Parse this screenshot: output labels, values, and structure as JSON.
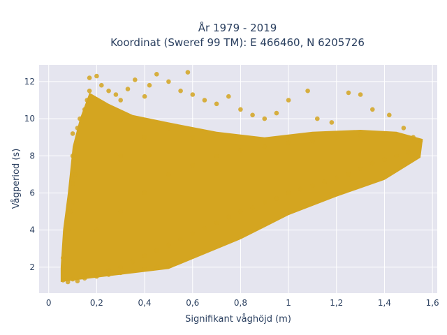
{
  "chart_data": {
    "type": "scatter",
    "title_line1": "År 1979 - 2019",
    "title_line2": "Koordinat (Sweref 99 TM): E 466460, N 6205726",
    "xlabel": "Signifikant våghöjd (m)",
    "ylabel": "Vågperiod (s)",
    "xlim": [
      -0.04,
      1.62
    ],
    "ylim": [
      0.6,
      12.9
    ],
    "x_ticks": [
      {
        "value": 0,
        "label": "0"
      },
      {
        "value": 0.2,
        "label": "0,2"
      },
      {
        "value": 0.4,
        "label": "0,4"
      },
      {
        "value": 0.6,
        "label": "0,6"
      },
      {
        "value": 0.8,
        "label": "0,8"
      },
      {
        "value": 1.0,
        "label": "1"
      },
      {
        "value": 1.2,
        "label": "1,2"
      },
      {
        "value": 1.4,
        "label": "1,4"
      },
      {
        "value": 1.6,
        "label": "1,6"
      }
    ],
    "y_ticks": [
      {
        "value": 2,
        "label": "2"
      },
      {
        "value": 4,
        "label": "4"
      },
      {
        "value": 6,
        "label": "6"
      },
      {
        "value": 8,
        "label": "8"
      },
      {
        "value": 10,
        "label": "10"
      },
      {
        "value": 12,
        "label": "12"
      }
    ],
    "grid": true,
    "marker_color": "#d4a520",
    "plot_bg": "#e5e5ef",
    "points": [
      [
        0.06,
        1.3
      ],
      [
        0.08,
        1.2
      ],
      [
        0.1,
        1.35
      ],
      [
        0.12,
        1.25
      ],
      [
        0.15,
        1.4
      ],
      [
        0.2,
        1.5
      ],
      [
        0.25,
        1.6
      ],
      [
        0.3,
        1.7
      ],
      [
        0.35,
        1.8
      ],
      [
        0.4,
        1.9
      ],
      [
        0.45,
        2.0
      ],
      [
        0.5,
        2.05
      ],
      [
        0.06,
        2.5
      ],
      [
        0.07,
        3.5
      ],
      [
        0.08,
        4.0
      ],
      [
        0.09,
        5.0
      ],
      [
        0.1,
        5.5
      ],
      [
        0.1,
        6.5
      ],
      [
        0.11,
        7.0
      ],
      [
        0.1,
        8.0
      ],
      [
        0.12,
        8.5
      ],
      [
        0.1,
        9.2
      ],
      [
        0.12,
        9.5
      ],
      [
        0.13,
        10.0
      ],
      [
        0.15,
        10.5
      ],
      [
        0.16,
        11.0
      ],
      [
        0.17,
        11.5
      ],
      [
        0.17,
        12.2
      ],
      [
        0.2,
        12.3
      ],
      [
        0.22,
        11.8
      ],
      [
        0.25,
        11.5
      ],
      [
        0.28,
        11.3
      ],
      [
        0.3,
        11.0
      ],
      [
        0.33,
        11.6
      ],
      [
        0.36,
        12.1
      ],
      [
        0.4,
        11.2
      ],
      [
        0.42,
        11.8
      ],
      [
        0.45,
        12.4
      ],
      [
        0.5,
        12.0
      ],
      [
        0.55,
        11.5
      ],
      [
        0.58,
        12.5
      ],
      [
        0.6,
        11.3
      ],
      [
        0.65,
        11.0
      ],
      [
        0.7,
        10.8
      ],
      [
        0.75,
        11.2
      ],
      [
        0.8,
        10.5
      ],
      [
        0.85,
        10.2
      ],
      [
        0.9,
        10.0
      ],
      [
        0.95,
        10.3
      ],
      [
        1.0,
        11.0
      ],
      [
        1.08,
        11.5
      ],
      [
        1.12,
        10.0
      ],
      [
        1.18,
        9.8
      ],
      [
        1.25,
        11.4
      ],
      [
        1.3,
        11.3
      ],
      [
        1.35,
        10.5
      ],
      [
        1.42,
        10.2
      ],
      [
        1.48,
        9.5
      ],
      [
        1.52,
        9.0
      ],
      [
        1.55,
        8.8
      ],
      [
        1.5,
        8.2
      ],
      [
        1.45,
        8.0
      ],
      [
        1.4,
        7.8
      ],
      [
        1.35,
        7.6
      ],
      [
        1.3,
        7.3
      ],
      [
        1.25,
        7.0
      ],
      [
        1.2,
        6.8
      ],
      [
        1.15,
        6.6
      ],
      [
        1.1,
        6.4
      ],
      [
        1.05,
        6.2
      ],
      [
        1.0,
        6.0
      ],
      [
        0.95,
        5.7
      ],
      [
        0.9,
        5.5
      ],
      [
        0.85,
        5.2
      ],
      [
        0.8,
        5.0
      ],
      [
        0.75,
        4.7
      ],
      [
        0.7,
        4.4
      ],
      [
        0.65,
        4.1
      ],
      [
        0.6,
        3.8
      ],
      [
        0.55,
        3.5
      ],
      [
        0.5,
        3.2
      ],
      [
        0.45,
        2.9
      ],
      [
        0.4,
        2.6
      ],
      [
        0.35,
        2.3
      ],
      [
        0.3,
        2.0
      ],
      [
        0.25,
        1.8
      ],
      [
        0.2,
        1.7
      ],
      [
        0.15,
        1.6
      ],
      [
        0.2,
        4.0
      ],
      [
        0.3,
        5.0
      ],
      [
        0.4,
        6.0
      ],
      [
        0.5,
        7.0
      ],
      [
        0.6,
        7.5
      ],
      [
        0.7,
        8.0
      ],
      [
        0.8,
        8.3
      ],
      [
        0.9,
        8.5
      ],
      [
        1.0,
        8.7
      ],
      [
        1.1,
        8.8
      ],
      [
        1.2,
        9.0
      ],
      [
        1.3,
        9.1
      ],
      [
        1.4,
        9.2
      ],
      [
        0.3,
        8.0
      ],
      [
        0.4,
        9.0
      ],
      [
        0.5,
        9.5
      ],
      [
        0.6,
        9.0
      ]
    ]
  }
}
